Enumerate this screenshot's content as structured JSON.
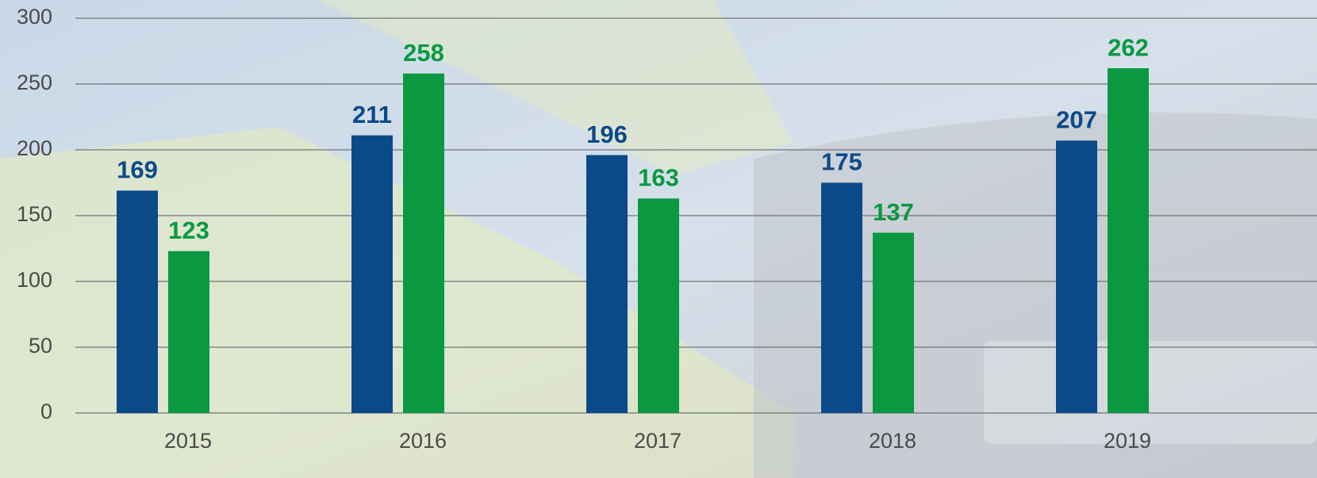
{
  "chart_data": {
    "type": "bar",
    "categories": [
      "2015",
      "2016",
      "2017",
      "2018",
      "2019"
    ],
    "series": [
      {
        "color": "#0b4a89",
        "values": [
          169,
          211,
          196,
          175,
          207
        ]
      },
      {
        "color": "#0a9941",
        "values": [
          123,
          258,
          163,
          137,
          262
        ]
      }
    ],
    "ylim": [
      0,
      300
    ],
    "yticks": [
      0,
      50,
      100,
      150,
      200,
      250,
      300
    ],
    "grid": true,
    "data_labels": true
  }
}
